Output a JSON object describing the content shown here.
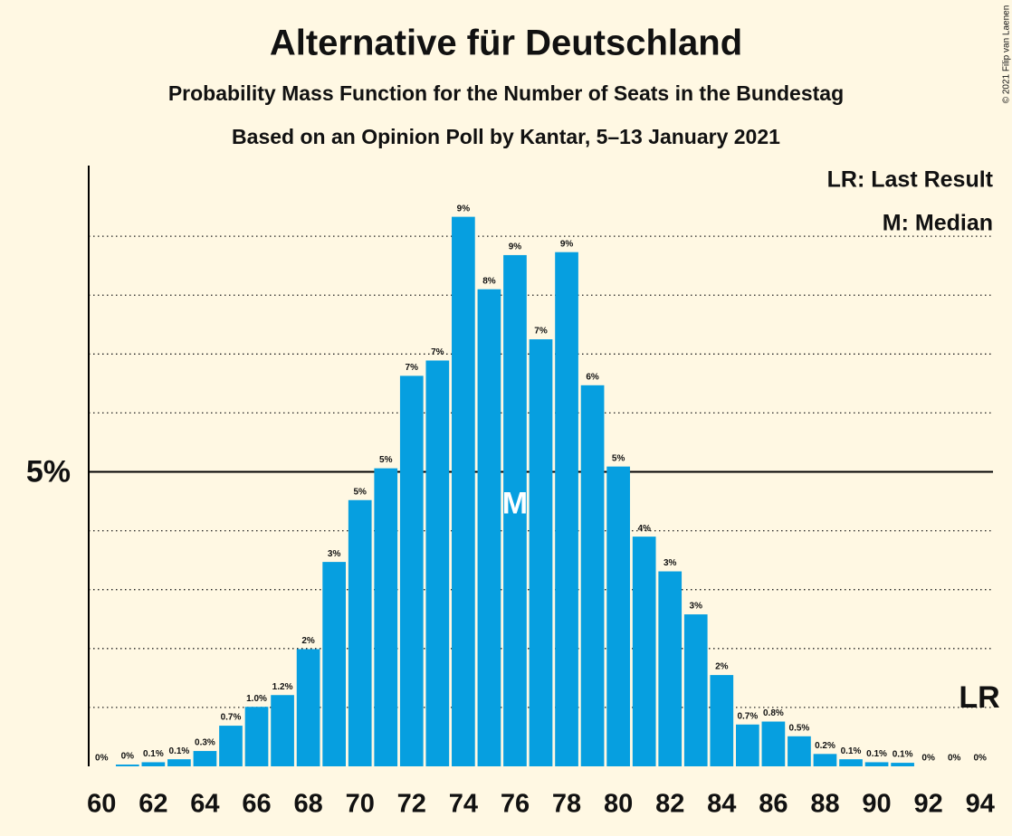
{
  "chart_data": {
    "type": "bar",
    "title": "Alternative für Deutschland",
    "subtitle": "Probability Mass Function for the Number of Seats in the Bundestag",
    "subtitle2": "Based on an Opinion Poll by Kantar, 5–13 January 2021",
    "copyright": "© 2021 Filip van Laenen",
    "legend": [
      "LR: Last Result",
      "M: Median"
    ],
    "median": {
      "x": 76,
      "label": "M"
    },
    "last_result": {
      "x": 94,
      "label": "LR"
    },
    "color": "#069fe0",
    "x": [
      60,
      61,
      62,
      63,
      64,
      65,
      66,
      67,
      68,
      69,
      70,
      71,
      72,
      73,
      74,
      75,
      76,
      77,
      78,
      79,
      80,
      81,
      82,
      83,
      84,
      85,
      86,
      87,
      88,
      89,
      90,
      91,
      92,
      93,
      94
    ],
    "values": [
      0,
      0.03,
      0.07,
      0.12,
      0.26,
      0.69,
      1.01,
      1.21,
      1.99,
      3.47,
      4.52,
      5.06,
      6.63,
      6.89,
      9.33,
      8.1,
      8.68,
      7.25,
      8.73,
      6.47,
      5.09,
      3.9,
      3.31,
      2.58,
      1.55,
      0.71,
      0.76,
      0.51,
      0.21,
      0.12,
      0.07,
      0.06,
      0,
      0,
      0
    ],
    "value_labels": [
      "0%",
      "0%",
      "0.1%",
      "0.1%",
      "0.3%",
      "0.7%",
      "1.0%",
      "1.2%",
      "2%",
      "3%",
      "5%",
      "5%",
      "7%",
      "7%",
      "9%",
      "8%",
      "9%",
      "7%",
      "9%",
      "6%",
      "5%",
      "4%",
      "3%",
      "3%",
      "2%",
      "0.7%",
      "0.8%",
      "0.5%",
      "0.2%",
      "0.1%",
      "0.1%",
      "0.1%",
      "0%",
      "0%",
      "0%"
    ],
    "xlim": [
      59.5,
      94.5
    ],
    "xticks": [
      60,
      62,
      64,
      66,
      68,
      70,
      72,
      74,
      76,
      78,
      80,
      82,
      84,
      86,
      88,
      90,
      92,
      94
    ],
    "ylim": [
      0,
      10.2
    ],
    "yticks": [
      {
        "value": 5,
        "label": "5%"
      }
    ],
    "ygrid_minor": [
      1,
      2,
      3,
      4,
      6,
      7,
      8,
      9
    ]
  }
}
